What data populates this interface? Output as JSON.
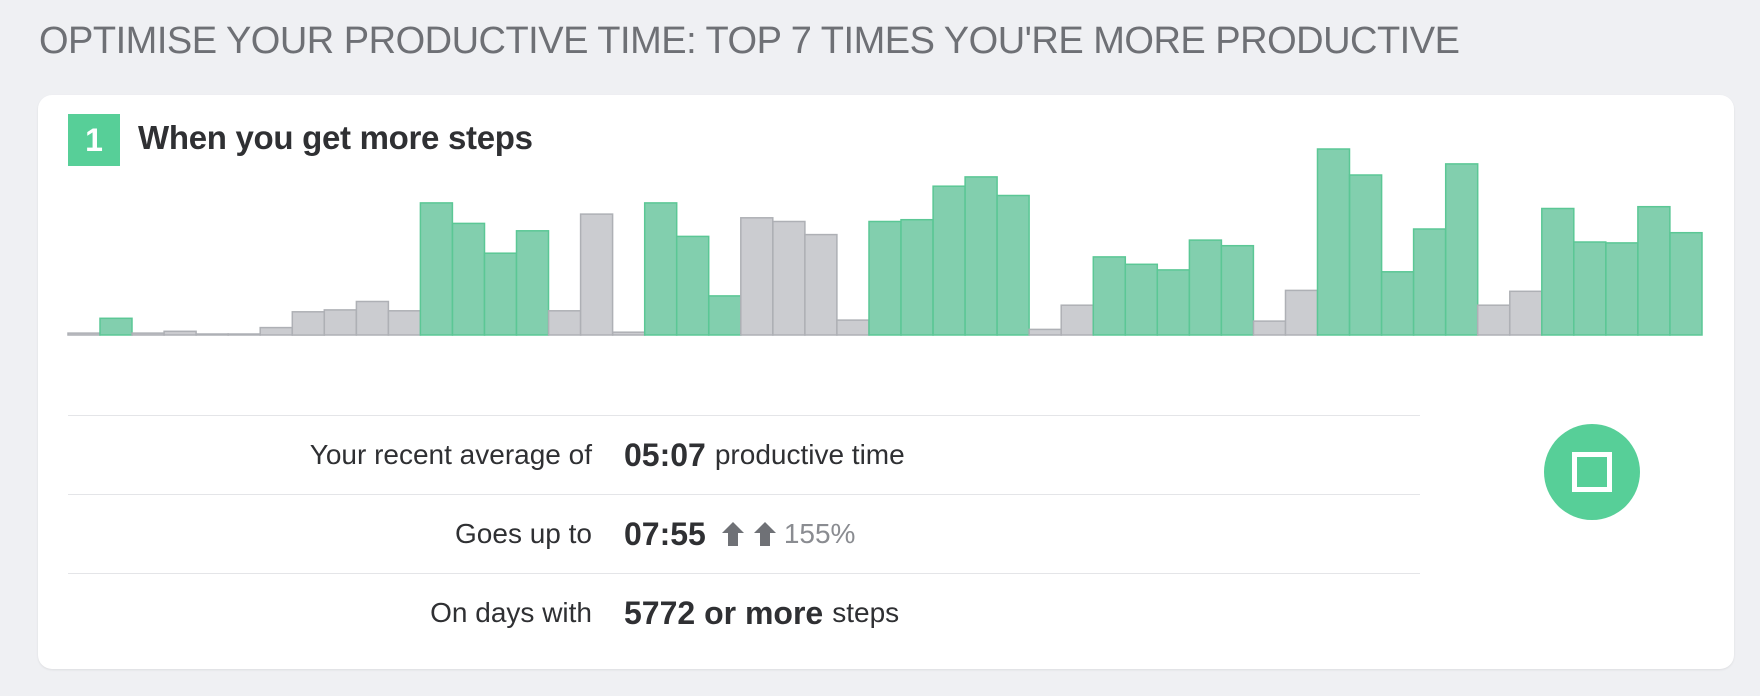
{
  "page": {
    "title": "OPTIMISE YOUR PRODUCTIVE TIME: TOP 7 TIMES YOU'RE MORE PRODUCTIVE"
  },
  "card": {
    "rank": "1",
    "heading": "When you get more steps"
  },
  "stats": {
    "average_label": "Your recent average of",
    "average_value": "05:07",
    "average_suffix": "productive time",
    "up_label": "Goes up to",
    "up_value": "07:55",
    "up_percent": "155%",
    "condition_label": "On days with",
    "condition_value": "5772 or more",
    "condition_suffix": "steps"
  },
  "colors": {
    "accent": "#57cf98",
    "highlight_bar": "#82cfae",
    "neutral_bar": "#cbccd0"
  },
  "icons": {
    "arrow": "arrow-up-icon",
    "button": "stop-icon"
  },
  "chart_data": {
    "type": "bar",
    "title": "",
    "xlabel": "",
    "ylabel": "",
    "ylim": [
      0,
      100
    ],
    "values": [
      1,
      9,
      1,
      2,
      0.5,
      0.3,
      4,
      12.5,
      13.5,
      18,
      13,
      71,
      60,
      44,
      56,
      13,
      65,
      1.5,
      71,
      53,
      21,
      63,
      61,
      54,
      8,
      61,
      62,
      80,
      85,
      75,
      3,
      16,
      42,
      38,
      35,
      51,
      48,
      7.5,
      24,
      100,
      86,
      34,
      57,
      92,
      16,
      23.5,
      68,
      50,
      49.5,
      69,
      55
    ],
    "highlighted": [
      false,
      true,
      false,
      false,
      false,
      false,
      false,
      false,
      false,
      false,
      false,
      true,
      true,
      true,
      true,
      false,
      false,
      false,
      true,
      true,
      true,
      false,
      false,
      false,
      false,
      true,
      true,
      true,
      true,
      true,
      false,
      false,
      true,
      true,
      true,
      true,
      true,
      false,
      false,
      true,
      true,
      true,
      true,
      true,
      false,
      false,
      true,
      true,
      true,
      true,
      true
    ]
  }
}
